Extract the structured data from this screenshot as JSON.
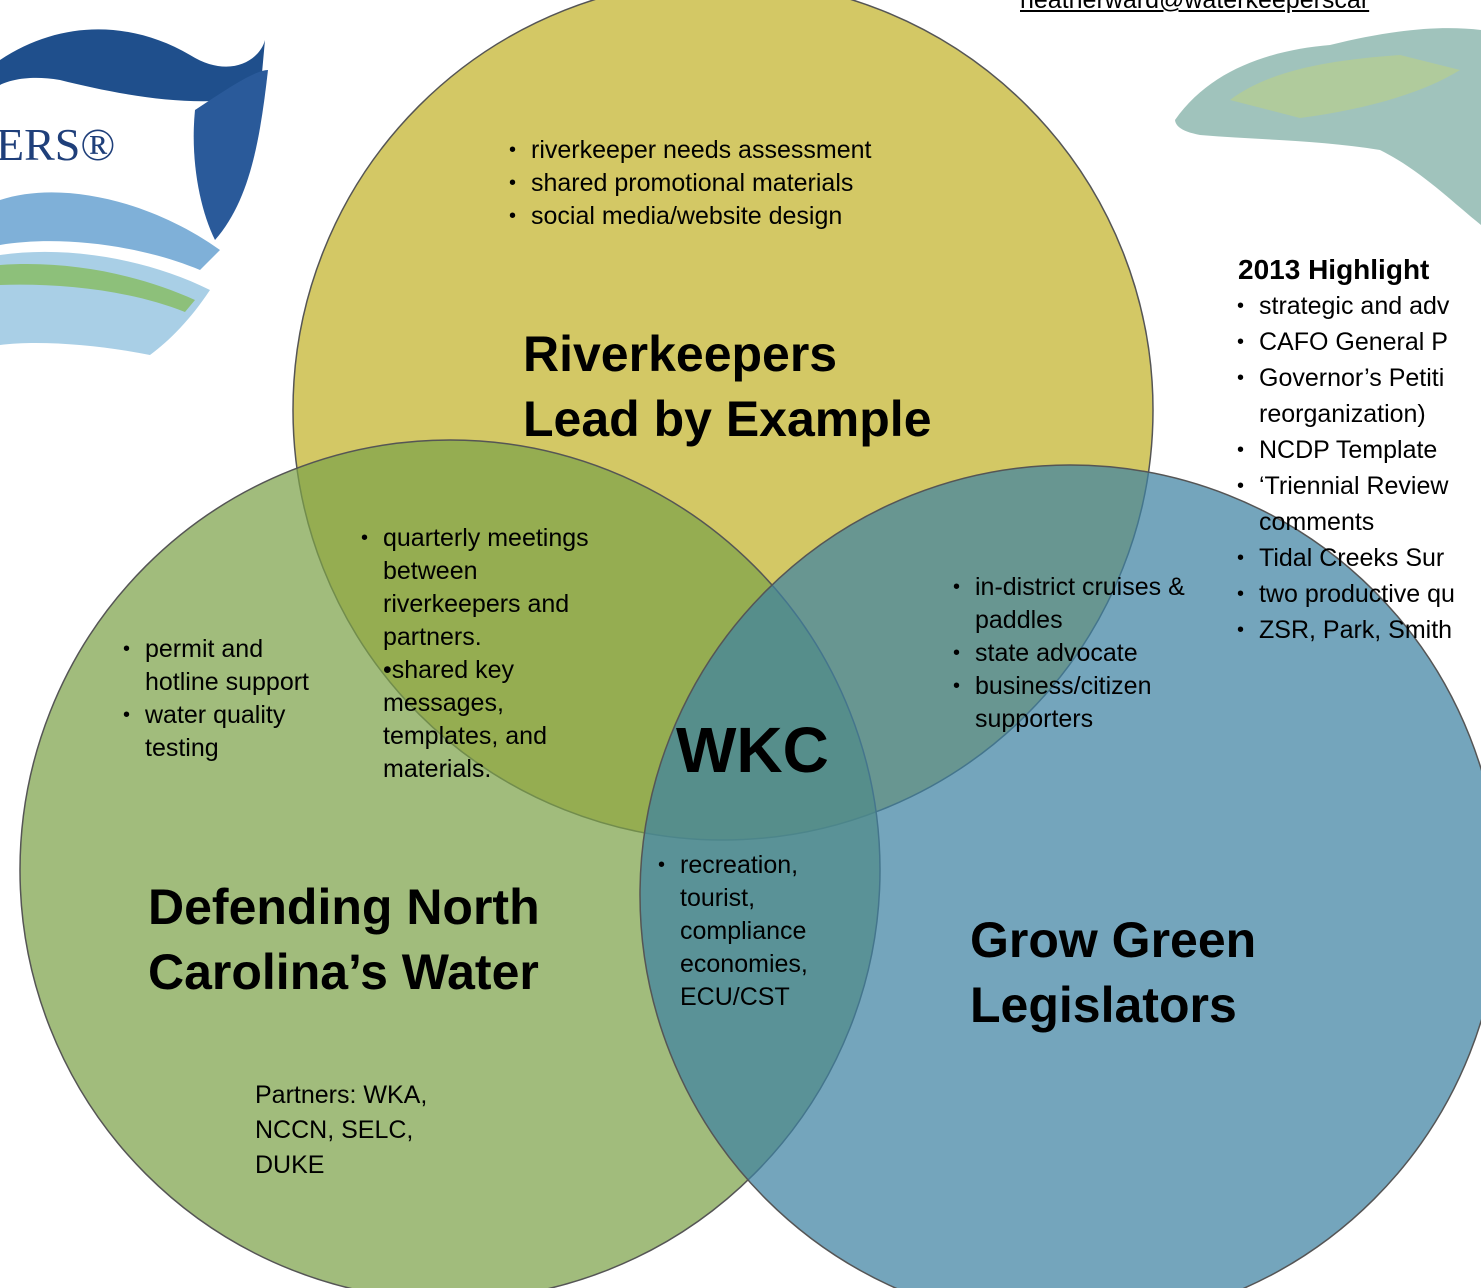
{
  "header": {
    "email": "heatherward@waterkeeperscar"
  },
  "logo": {
    "text": "ERS®"
  },
  "highlights": {
    "title": "2013 Highlight",
    "items": [
      {
        "lines": [
          "strategic and adv"
        ]
      },
      {
        "lines": [
          "CAFO General P"
        ]
      },
      {
        "lines": [
          "Governor’s Petiti",
          "reorganization)"
        ]
      },
      {
        "lines": [
          "NCDP Template"
        ]
      },
      {
        "lines": [
          "‘Triennial Review",
          "comments"
        ]
      },
      {
        "lines": [
          "Tidal Creeks Sur"
        ]
      },
      {
        "lines": [
          "two productive qu"
        ]
      },
      {
        "lines": [
          "ZSR, Park, Smith"
        ]
      }
    ]
  },
  "venn": {
    "riverkeepers": {
      "title_lines": [
        "Riverkeepers",
        "Lead by Example"
      ],
      "items": [
        "riverkeeper needs assessment",
        "shared promotional materials",
        "social media/website design"
      ]
    },
    "defending": {
      "title_lines": [
        "Defending North",
        "Carolina’s Water"
      ],
      "items": [
        "permit and hotline support",
        "water quality testing"
      ],
      "partners": "Partners: WKA, NCCN, SELC, DUKE"
    },
    "grow_green": {
      "title_lines": [
        "Grow Green",
        "Legislators"
      ]
    },
    "riverkeepers_defending": {
      "items": [
        "quarterly meetings between riverkeepers and partners.",
        "•shared key messages, templates, and materials."
      ]
    },
    "riverkeepers_grow_green": {
      "items": [
        "in-district cruises & paddles",
        "state advocate",
        "business/citizen supporters"
      ]
    },
    "defending_grow_green": {
      "items": [
        "recreation, tourist, compliance economies, ECU/CST"
      ]
    },
    "center": "WKC"
  }
}
